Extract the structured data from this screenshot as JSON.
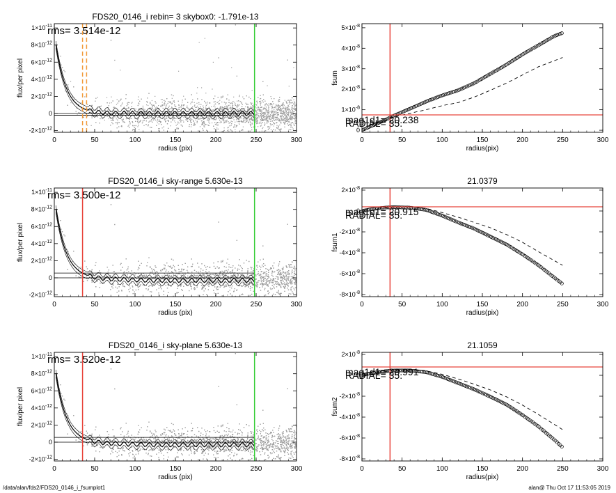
{
  "footer": {
    "left": "/data/alan/fds2/FDS20_0146_i_fsumplot1",
    "right": "alan@  Thu Oct 17 11:53:05 2019"
  },
  "colors": {
    "scatter": "#9c9c9c",
    "profile": "#000000",
    "red_marker": "#e8433a",
    "green_marker": "#33cc33",
    "orange_marker": "#f29a3a"
  },
  "chart_data": [
    {
      "id": "profile-1",
      "type": "scatter",
      "title": "FDS20_0146_i rebin= 3    skybox0: -1.791e-13",
      "annotation": "rms= 3.514e-12",
      "xlabel": "radius (pix)",
      "ylabel": "flux/per pixel",
      "xlim": [
        0,
        300
      ],
      "ylim": [
        -2.2e-12,
        1.05e-11
      ],
      "xticks": [
        "0",
        "50",
        "100",
        "150",
        "200",
        "250",
        "300"
      ],
      "yticks": [
        {
          "v": 1e-11,
          "mant": "1×10",
          "exp": "-11"
        },
        {
          "v": 8e-12,
          "mant": "8×10",
          "exp": "-12"
        },
        {
          "v": 6e-12,
          "mant": "6×10",
          "exp": "-12"
        },
        {
          "v": 4e-12,
          "mant": "4×10",
          "exp": "-12"
        },
        {
          "v": 2e-12,
          "mant": "2×10",
          "exp": "-12"
        },
        {
          "v": 0,
          "mant": "0",
          "exp": ""
        },
        {
          "v": -2e-12,
          "mant": "-2×10",
          "exp": "-12"
        }
      ],
      "hlines": [
        {
          "y": 0,
          "x": [
            0,
            248
          ]
        },
        {
          "y": -2e-13,
          "x": [
            0,
            215
          ]
        }
      ],
      "vlines": [
        {
          "x": 35,
          "color": "orange",
          "dash": "6,4"
        },
        {
          "x": 40,
          "color": "orange",
          "dash": "6,4"
        },
        {
          "x": 248,
          "color": "green"
        }
      ]
    },
    {
      "id": "fsum",
      "type": "line",
      "title": "",
      "xlabel": "radius(pix)",
      "ylabel": "fsum",
      "xlim": [
        0,
        300
      ],
      "ylim": [
        -1e-09,
        5.2e-08
      ],
      "xticks": [
        "0",
        "50",
        "100",
        "150",
        "200",
        "250",
        "300"
      ],
      "yticks": [
        {
          "v": 5e-08,
          "mant": "5×10",
          "exp": "-8"
        },
        {
          "v": 4e-08,
          "mant": "4×10",
          "exp": "-8"
        },
        {
          "v": 3e-08,
          "mant": "3×10",
          "exp": "-8"
        },
        {
          "v": 2e-08,
          "mant": "2×10",
          "exp": "-8"
        },
        {
          "v": 1e-08,
          "mant": "1×10",
          "exp": "-8"
        },
        {
          "v": 0,
          "mant": "0",
          "exp": ""
        }
      ],
      "red_vline_x": 35,
      "red_hline_y": 7.5e-09,
      "labels": [
        "mag1d1= 20.238",
        "RADIAL= 35."
      ],
      "series": [
        {
          "style": "circles",
          "x": [
            0,
            10,
            20,
            30,
            40,
            60,
            80,
            100,
            120,
            140,
            160,
            180,
            200,
            220,
            240,
            250
          ],
          "y": [
            0,
            1.8e-09,
            3.5e-09,
            5.2e-09,
            7.2e-09,
            1.05e-08,
            1.4e-08,
            1.7e-08,
            1.95e-08,
            2.3e-08,
            2.75e-08,
            3.2e-08,
            3.7e-08,
            4.15e-08,
            4.6e-08,
            4.75e-08
          ]
        },
        {
          "style": "dashed",
          "x": [
            20,
            40,
            60,
            80,
            100,
            120,
            140,
            160,
            180,
            200,
            220,
            250
          ],
          "y": [
            3.5e-09,
            6.5e-09,
            8.3e-09,
            1e-08,
            1.2e-08,
            1.35e-08,
            1.62e-08,
            1.95e-08,
            2.3e-08,
            2.7e-08,
            3.1e-08,
            3.55e-08
          ]
        }
      ]
    },
    {
      "id": "profile-2",
      "type": "scatter",
      "title": "FDS20_0146_i sky-range  5.630e-13",
      "annotation": "rms= 3.500e-12",
      "xlabel": "radius (pix)",
      "ylabel": "flux/per pixel",
      "xlim": [
        0,
        300
      ],
      "ylim": [
        -2.2e-12,
        1.05e-11
      ],
      "xticks": [
        "0",
        "50",
        "100",
        "150",
        "200",
        "250",
        "300"
      ],
      "yticks": [
        {
          "v": 1e-11,
          "mant": "1×10",
          "exp": "-11"
        },
        {
          "v": 8e-12,
          "mant": "8×10",
          "exp": "-12"
        },
        {
          "v": 6e-12,
          "mant": "6×10",
          "exp": "-12"
        },
        {
          "v": 4e-12,
          "mant": "4×10",
          "exp": "-12"
        },
        {
          "v": 2e-12,
          "mant": "2×10",
          "exp": "-12"
        },
        {
          "v": 0,
          "mant": "0",
          "exp": ""
        },
        {
          "v": -2e-12,
          "mant": "-2×10",
          "exp": "-12"
        }
      ],
      "hlines": [
        {
          "y": 5.6e-13,
          "x": [
            0,
            248
          ]
        },
        {
          "y": 0,
          "x": [
            0,
            248
          ]
        }
      ],
      "vlines": [
        {
          "x": 35,
          "color": "red"
        },
        {
          "x": 248,
          "color": "green"
        }
      ]
    },
    {
      "id": "fsum1",
      "type": "line",
      "title": "21.0379",
      "xlabel": "radius(pix)",
      "ylabel": "fsum1",
      "xlim": [
        0,
        300
      ],
      "ylim": [
        -8.2e-08,
        2.2e-08
      ],
      "xticks": [
        "0",
        "50",
        "100",
        "150",
        "200",
        "250",
        "300"
      ],
      "yticks": [
        {
          "v": 2e-08,
          "mant": "2×10",
          "exp": "-8"
        },
        {
          "v": 0,
          "mant": "0",
          "exp": ""
        },
        {
          "v": -2e-08,
          "mant": "-2×10",
          "exp": "-8"
        },
        {
          "v": -4e-08,
          "mant": "-4×10",
          "exp": "-8"
        },
        {
          "v": -6e-08,
          "mant": "-6×10",
          "exp": "-8"
        },
        {
          "v": -8e-08,
          "mant": "-8×10",
          "exp": "-8"
        }
      ],
      "red_vline_x": 35,
      "red_hline_y": 4e-09,
      "labels": [
        "mag1d1= 20.915",
        "RADIAL= 35."
      ],
      "series": [
        {
          "style": "circles",
          "x": [
            0,
            10,
            20,
            30,
            40,
            60,
            80,
            100,
            120,
            140,
            160,
            180,
            200,
            220,
            240,
            250
          ],
          "y": [
            0,
            1.5e-09,
            2.6e-09,
            3.3e-09,
            3.6e-09,
            3.2e-09,
            1e-09,
            -4.5e-09,
            -1.1e-08,
            -1.7e-08,
            -2.45e-08,
            -3.2e-08,
            -4.15e-08,
            -5.2e-08,
            -6.4e-08,
            -7e-08
          ]
        },
        {
          "style": "dashed",
          "x": [
            20,
            40,
            60,
            80,
            100,
            120,
            140,
            160,
            180,
            200,
            220,
            250
          ],
          "y": [
            2.6e-09,
            3.8e-09,
            4e-09,
            2.5e-09,
            -1.5e-09,
            -6e-09,
            -1.1e-08,
            -1.6e-08,
            -2.25e-08,
            -3e-08,
            -3.9e-08,
            -5.2e-08
          ]
        }
      ]
    },
    {
      "id": "profile-3",
      "type": "scatter",
      "title": "FDS20_0146_i sky-plane  5.630e-13",
      "annotation": "rms= 3.520e-12",
      "xlabel": "radius (pix)",
      "ylabel": "flux/per pixel",
      "xlim": [
        0,
        300
      ],
      "ylim": [
        -2.2e-12,
        1.05e-11
      ],
      "xticks": [
        "0",
        "50",
        "100",
        "150",
        "200",
        "250",
        "300"
      ],
      "yticks": [
        {
          "v": 1e-11,
          "mant": "1×10",
          "exp": "-11"
        },
        {
          "v": 8e-12,
          "mant": "8×10",
          "exp": "-12"
        },
        {
          "v": 6e-12,
          "mant": "6×10",
          "exp": "-12"
        },
        {
          "v": 4e-12,
          "mant": "4×10",
          "exp": "-12"
        },
        {
          "v": 2e-12,
          "mant": "2×10",
          "exp": "-12"
        },
        {
          "v": 0,
          "mant": "0",
          "exp": ""
        },
        {
          "v": -2e-12,
          "mant": "-2×10",
          "exp": "-12"
        }
      ],
      "hlines": [
        {
          "y": 5.6e-13,
          "x": [
            0,
            248
          ]
        },
        {
          "y": 0,
          "x": [
            0,
            248
          ]
        }
      ],
      "vlines": [
        {
          "x": 35,
          "color": "red"
        },
        {
          "x": 248,
          "color": "green"
        }
      ]
    },
    {
      "id": "fsum2",
      "type": "line",
      "title": "21.1059",
      "xlabel": "radius(pix)",
      "ylabel": "fsum2",
      "xlim": [
        0,
        300
      ],
      "ylim": [
        -8.2e-08,
        2.2e-08
      ],
      "xticks": [
        "0",
        "50",
        "100",
        "150",
        "200",
        "250",
        "300"
      ],
      "yticks": [
        {
          "v": 2e-08,
          "mant": "2×10",
          "exp": "-8"
        },
        {
          "v": 0,
          "mant": "0",
          "exp": ""
        },
        {
          "v": -2e-08,
          "mant": "-2×10",
          "exp": "-8"
        },
        {
          "v": -4e-08,
          "mant": "-4×10",
          "exp": "-8"
        },
        {
          "v": -6e-08,
          "mant": "-6×10",
          "exp": "-8"
        },
        {
          "v": -8e-08,
          "mant": "-8×10",
          "exp": "-8"
        }
      ],
      "red_vline_x": 35,
      "red_hline_y": 8e-09,
      "labels": [
        "mag1d1= 20.991",
        "RADIAL= 35."
      ],
      "series": [
        {
          "style": "circles",
          "x": [
            0,
            10,
            20,
            30,
            40,
            60,
            80,
            100,
            120,
            140,
            160,
            180,
            200,
            220,
            240,
            250
          ],
          "y": [
            0,
            1.8e-09,
            3e-09,
            4e-09,
            4.6e-09,
            4.6e-09,
            3e-09,
            -1.5e-09,
            -7.5e-09,
            -1.35e-08,
            -2.05e-08,
            -2.8e-08,
            -3.8e-08,
            -4.9e-08,
            -6.2e-08,
            -6.9e-08
          ]
        },
        {
          "style": "dashed",
          "x": [
            20,
            40,
            60,
            80,
            100,
            120,
            140,
            160,
            180,
            200,
            220,
            250
          ],
          "y": [
            3e-09,
            4.8e-09,
            5.2e-09,
            4.2e-09,
            1e-09,
            -3.5e-09,
            -8.5e-09,
            -1.4e-08,
            -2.05e-08,
            -2.85e-08,
            -3.75e-08,
            -5.2e-08
          ]
        }
      ]
    }
  ]
}
